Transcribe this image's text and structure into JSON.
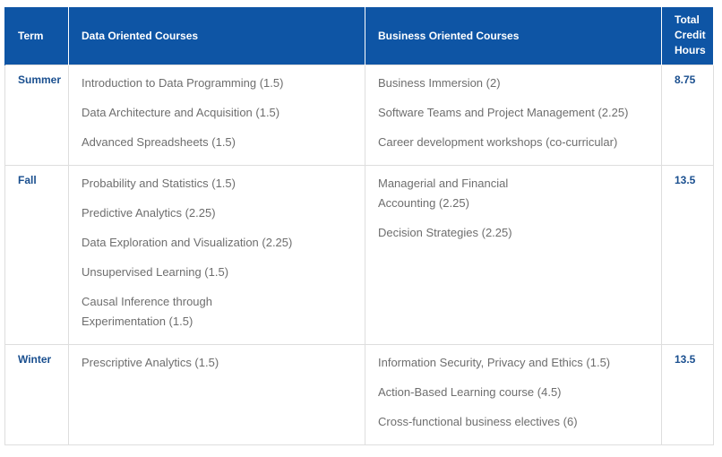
{
  "table": {
    "headers": {
      "term": "Term",
      "data": "Data Oriented Courses",
      "business": "Business Oriented Courses",
      "total_line1": "Total",
      "total_line2": "Credit",
      "total_line3": "Hours"
    },
    "rows": [
      {
        "term": "Summer",
        "data_courses": [
          "Introduction to Data Programming  (1.5)",
          "Data Architecture and Acquisition  (1.5)",
          "Advanced Spreadsheets (1.5)"
        ],
        "business_courses": [
          "Business Immersion (2)",
          "Software Teams and Project Management (2.25)",
          "Career development workshops (co-curricular)"
        ],
        "total": "8.75"
      },
      {
        "term": "Fall",
        "data_courses": [
          "Probability and Statistics (1.5)",
          "Predictive Analytics (2.25)",
          "Data Exploration and Visualization  (2.25)",
          "Unsupervised Learning (1.5)",
          "Causal Inference through Experimentation (1.5)"
        ],
        "business_courses": [
          "Managerial and Financial Accounting (2.25)",
          "Decision Strategies (2.25)"
        ],
        "total": "13.5"
      },
      {
        "term": "Winter",
        "data_courses": [
          "Prescriptive Analytics (1.5)"
        ],
        "business_courses": [
          "Information Security, Privacy and Ethics (1.5)",
          "Action-Based Learning course (4.5)",
          "Cross-functional business electives (6)"
        ],
        "total": "13.5"
      }
    ]
  }
}
